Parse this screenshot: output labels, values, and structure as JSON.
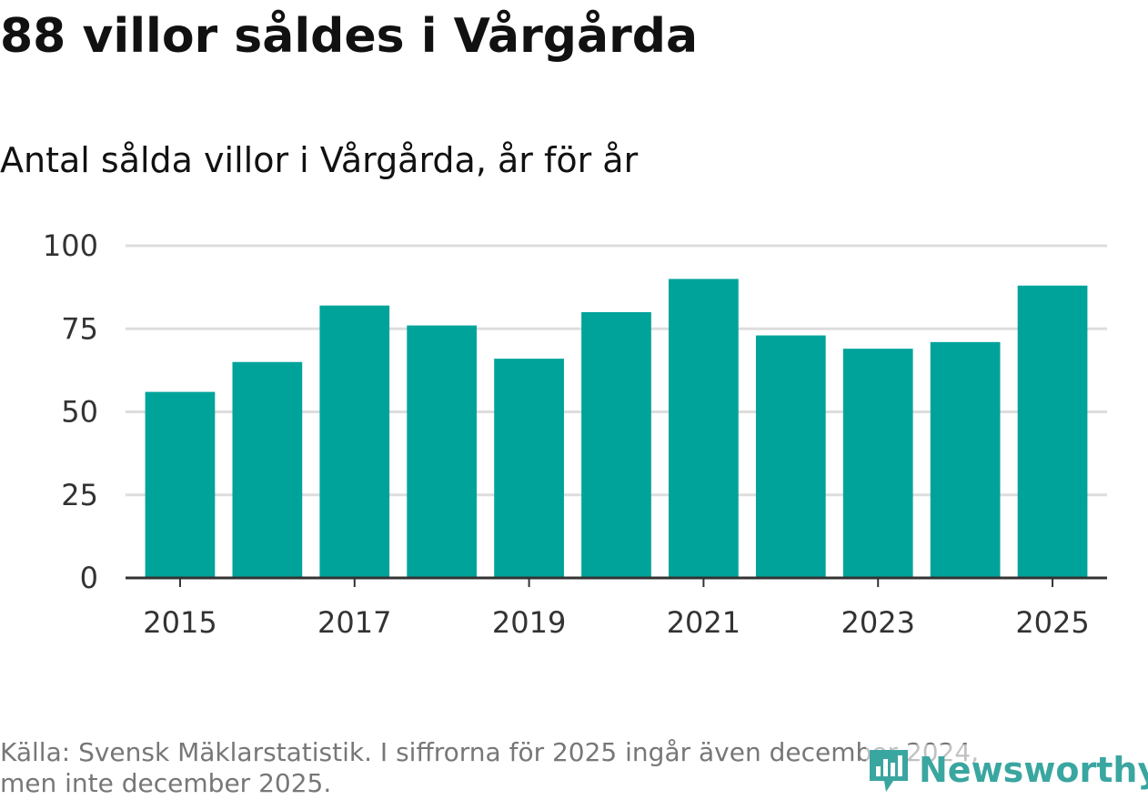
{
  "header": {
    "title": "88 villor såldes i Vårgårda",
    "subtitle": "Antal sålda villor i Vårgårda, år för år"
  },
  "footer": {
    "source_line1": "Källa: Svensk Mäklarstatistik. I siffrorna för 2025 ingår även december 2024,",
    "source_line2": "men inte december 2025."
  },
  "logo": {
    "text": "Newsworthy",
    "icon": "newsworthy-logo-icon"
  },
  "colors": {
    "bar": "#00a39a",
    "grid": "#dddddd",
    "axis": "#333333",
    "logo": "#3aa6a0"
  },
  "chart_data": {
    "type": "bar",
    "title": "Antal sålda villor i Vårgårda, år för år",
    "xlabel": "",
    "ylabel": "",
    "categories": [
      "2015",
      "2016",
      "2017",
      "2018",
      "2019",
      "2020",
      "2021",
      "2022",
      "2023",
      "2024",
      "2025"
    ],
    "values": [
      56,
      65,
      82,
      76,
      66,
      80,
      90,
      73,
      69,
      71,
      88
    ],
    "ylim": [
      0,
      100
    ],
    "yticks": [
      0,
      25,
      50,
      75,
      100
    ],
    "xtick_labels": [
      "2015",
      "2017",
      "2019",
      "2021",
      "2023",
      "2025"
    ],
    "grid": true
  }
}
